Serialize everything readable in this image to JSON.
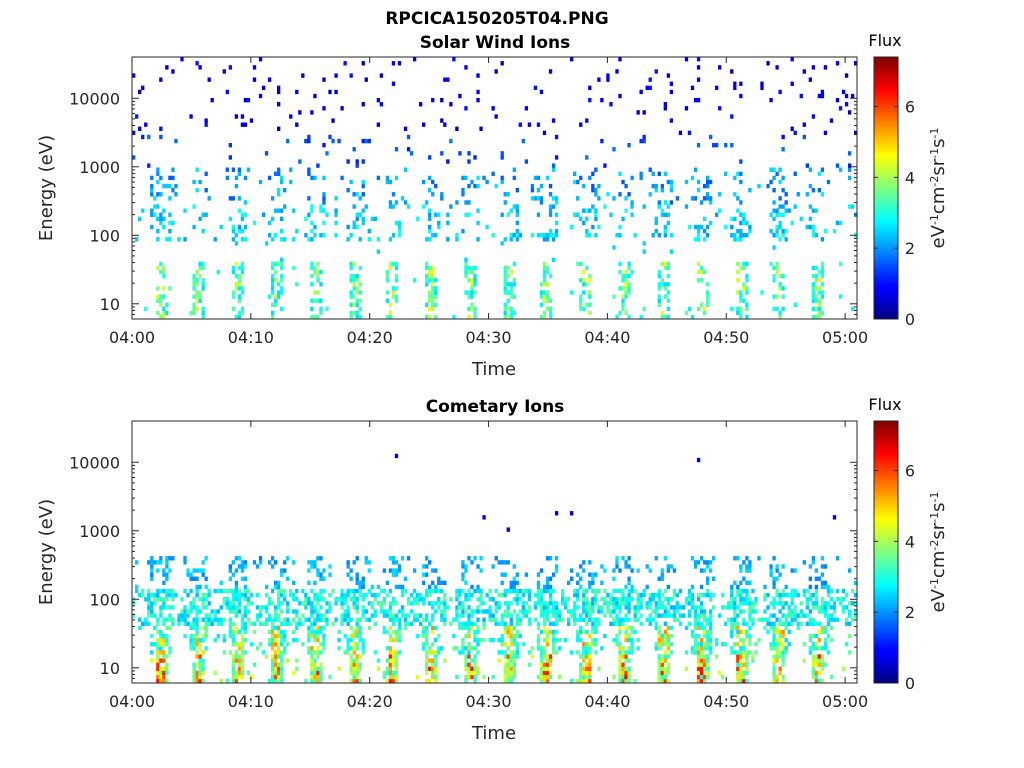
{
  "page": {
    "title": "RPCICA150205T04.PNG"
  },
  "chart_data": [
    {
      "type": "heatmap",
      "title": "Solar Wind Ions",
      "xlabel": "Time",
      "ylabel": "Energy (eV)",
      "x_ticks": [
        "04:00",
        "04:10",
        "04:20",
        "04:30",
        "04:40",
        "04:50",
        "05:00"
      ],
      "y_ticks": [
        "10",
        "100",
        "1000",
        "10000"
      ],
      "y_scale": "log",
      "ylim": [
        6,
        40000
      ],
      "xlim": [
        "04:00",
        "05:01"
      ],
      "colorbar": {
        "title": "Flux",
        "label": "eV-1cm-2sr-1s-1",
        "ticks": [
          "0",
          "2",
          "4",
          "6"
        ],
        "range": [
          0,
          7.4
        ],
        "colormap": "jet"
      },
      "bursts_minutes": [
        2.3,
        5.5,
        8.8,
        12.0,
        15.3,
        18.6,
        21.8,
        25.1,
        28.3,
        31.6,
        34.8,
        38.1,
        41.3,
        44.6,
        47.8,
        51.1,
        54.3,
        57.6
      ],
      "description_of_values": "Sparse low-flux (0-3) counts across 50-40000 eV; bands near 100-1000 eV at burst times; 6-30 eV enhancements up to ~4.5 at burst times"
    },
    {
      "type": "heatmap",
      "title": "Cometary Ions",
      "xlabel": "Time",
      "ylabel": "Energy (eV)",
      "x_ticks": [
        "04:00",
        "04:10",
        "04:20",
        "04:30",
        "04:40",
        "04:50",
        "05:00"
      ],
      "y_ticks": [
        "10",
        "100",
        "1000",
        "10000"
      ],
      "y_scale": "log",
      "ylim": [
        6,
        40000
      ],
      "xlim": [
        "04:00",
        "05:01"
      ],
      "colorbar": {
        "title": "Flux",
        "label": "eV-1cm-2sr-1s-1",
        "ticks": [
          "0",
          "2",
          "4",
          "6"
        ],
        "range": [
          0,
          7.4
        ],
        "colormap": "jet"
      },
      "bursts_minutes": [
        2.3,
        5.5,
        8.8,
        12.0,
        15.3,
        18.6,
        21.8,
        25.1,
        28.3,
        31.6,
        34.8,
        38.1,
        41.3,
        44.6,
        47.8,
        51.1,
        54.3,
        57.6
      ],
      "description_of_values": "Dense flux 2-3 from 6-300 eV with vertical bursts reaching 5-7 near 6-30 eV; isolated points at ~12000, ~1700, ~1000 eV"
    }
  ]
}
